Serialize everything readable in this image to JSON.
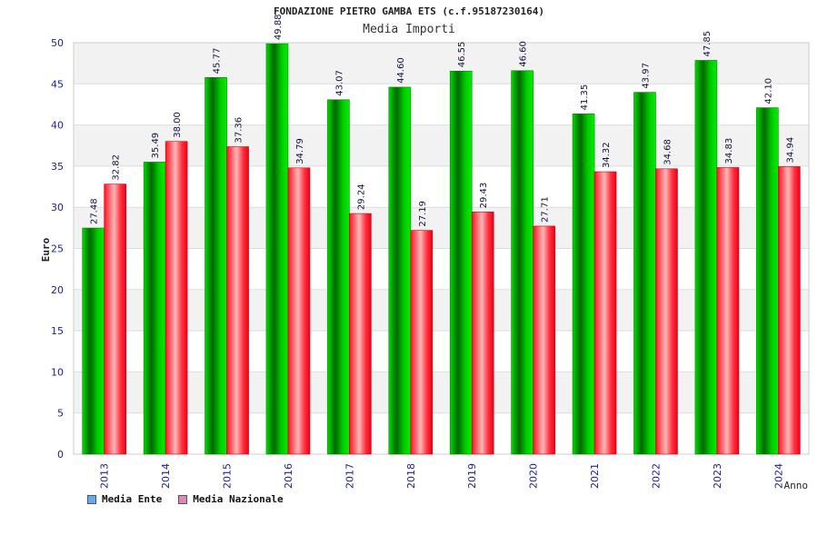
{
  "chart_data": {
    "type": "bar",
    "title": "FONDAZIONE PIETRO GAMBA ETS (c.f.95187230164)",
    "subtitle": "Media Importi",
    "xlabel": "Anno",
    "ylabel": "Euro",
    "ylim": [
      0,
      50
    ],
    "yticks": [
      "0",
      "5",
      "10",
      "15",
      "20",
      "25",
      "30",
      "35",
      "40",
      "45",
      "50"
    ],
    "categories": [
      "2013",
      "2014",
      "2015",
      "2016",
      "2017",
      "2018",
      "2019",
      "2020",
      "2021",
      "2022",
      "2023",
      "2024"
    ],
    "series": [
      {
        "name": "Media Ente",
        "color": "#00cc00",
        "values": [
          27.48,
          35.49,
          45.77,
          49.88,
          43.07,
          44.6,
          46.55,
          46.6,
          41.35,
          43.97,
          47.85,
          42.1
        ],
        "labels": [
          "27.48",
          "35.49",
          "45.77",
          "49.88",
          "43.07",
          "44.60",
          "46.55",
          "46.60",
          "41.35",
          "43.97",
          "47.85",
          "42.10"
        ]
      },
      {
        "name": "Media Nazionale",
        "color": "#ee1122",
        "values": [
          32.82,
          38.0,
          37.36,
          34.79,
          29.24,
          27.19,
          29.43,
          27.71,
          34.32,
          34.68,
          34.83,
          34.94
        ],
        "labels": [
          "32.82",
          "38.00",
          "37.36",
          "34.79",
          "29.24",
          "27.19",
          "29.43",
          "27.71",
          "34.32",
          "34.68",
          "34.83",
          "34.94"
        ]
      }
    ],
    "grid": true,
    "legend_position": "bottom-left"
  },
  "legend": {
    "items": [
      {
        "label": "Media Ente",
        "swatch_color": "#66aaee"
      },
      {
        "label": "Media Nazionale",
        "swatch_color": "#dd88bb"
      }
    ]
  }
}
